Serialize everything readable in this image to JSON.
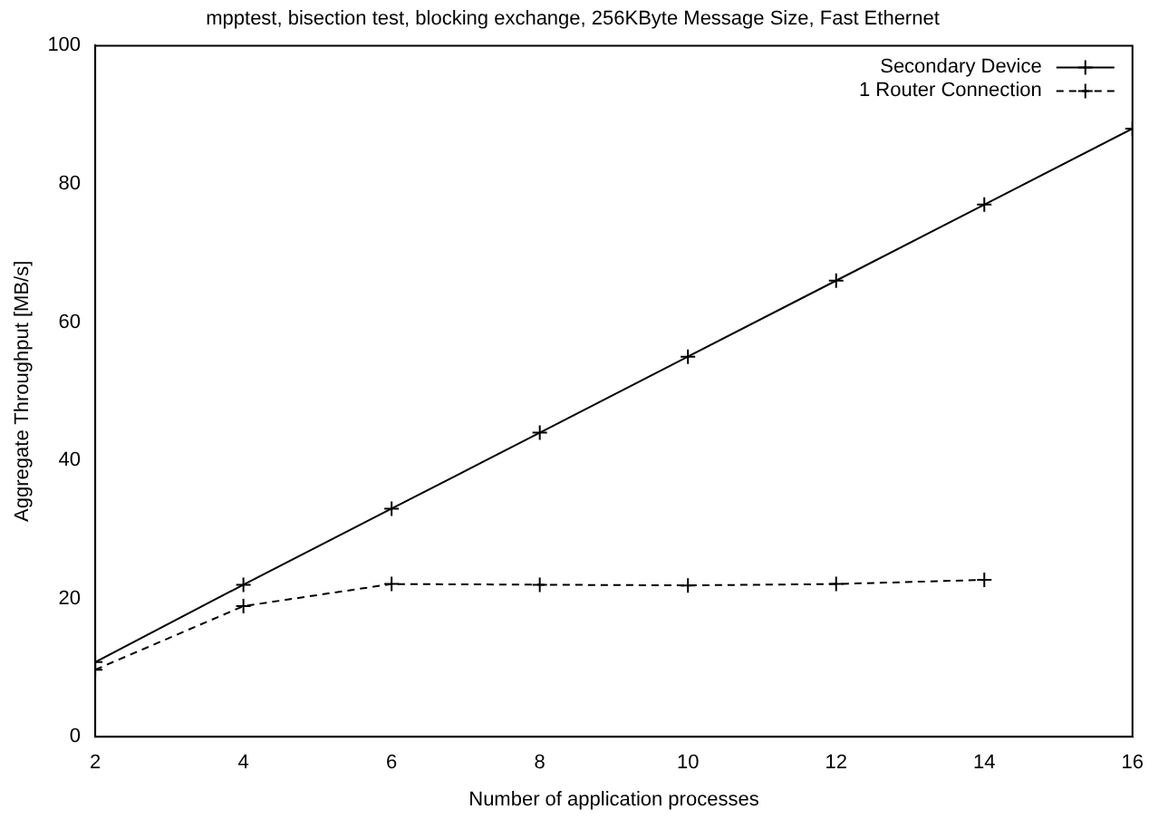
{
  "chart_data": {
    "type": "line",
    "title": "mpptest, bisection test, blocking exchange, 256KByte Message Size, Fast Ethernet",
    "xlabel": "Number of application processes",
    "ylabel": "Aggregate Throughput [MB/s]",
    "xlim": [
      2,
      16
    ],
    "xticks": [
      2,
      4,
      6,
      8,
      10,
      12,
      14,
      16
    ],
    "ylim": [
      0,
      100
    ],
    "yticks": [
      0,
      20,
      40,
      60,
      80,
      100
    ],
    "grid": false,
    "legend": "top right",
    "marker": "cross",
    "series": [
      {
        "name": "Secondary Device",
        "color": "#000000",
        "line_style": "solid",
        "x": [
          2,
          4,
          6,
          8,
          10,
          12,
          14,
          16
        ],
        "values": [
          10.8,
          22,
          33,
          44,
          55,
          66,
          77,
          88
        ]
      },
      {
        "name": "1 Router Connection",
        "color": "#000000",
        "line_style": "dashed",
        "x": [
          2,
          4,
          6,
          8,
          10,
          12,
          14
        ],
        "values": [
          9.7,
          18.9,
          22.1,
          22,
          21.9,
          22.1,
          22.7
        ]
      }
    ]
  }
}
